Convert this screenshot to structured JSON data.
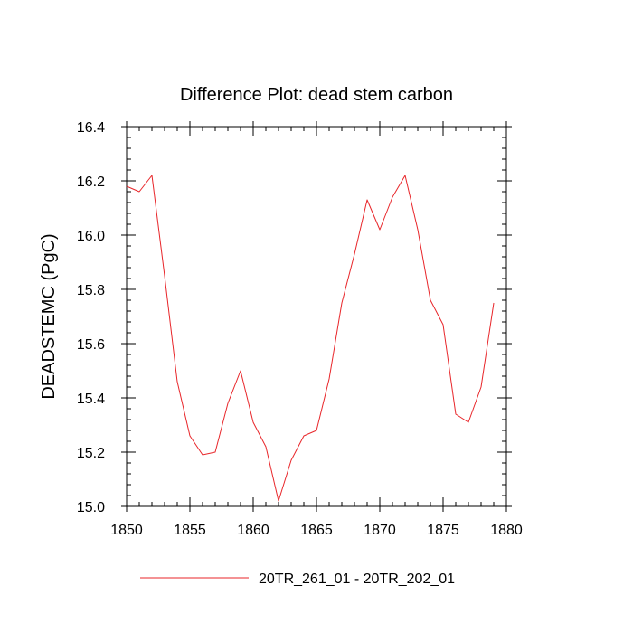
{
  "chart_data": {
    "type": "line",
    "title": "Difference Plot: dead stem carbon",
    "xlabel": "",
    "ylabel": "DEADSTEMC  (PgC)",
    "xlim": [
      1850,
      1880
    ],
    "ylim": [
      15.0,
      16.4
    ],
    "xticks": [
      1850,
      1855,
      1860,
      1865,
      1870,
      1875,
      1880
    ],
    "yticks": [
      15.0,
      15.2,
      15.4,
      15.6,
      15.8,
      16.0,
      16.2,
      16.4
    ],
    "ytick_labels": [
      "15.0",
      "15.2",
      "15.4",
      "15.6",
      "15.8",
      "16.0",
      "16.2",
      "16.4"
    ],
    "grid": false,
    "legend_position": "bottom",
    "series": [
      {
        "name": "20TR_261_01 - 20TR_202_01",
        "color": "#e8262a",
        "x": [
          1850,
          1851,
          1852,
          1853,
          1854,
          1855,
          1856,
          1857,
          1858,
          1859,
          1860,
          1861,
          1862,
          1863,
          1864,
          1865,
          1866,
          1867,
          1868,
          1869,
          1870,
          1871,
          1872,
          1873,
          1874,
          1875,
          1876,
          1877,
          1878,
          1879
        ],
        "y": [
          16.18,
          16.16,
          16.22,
          15.85,
          15.46,
          15.26,
          15.19,
          15.2,
          15.38,
          15.5,
          15.31,
          15.22,
          15.02,
          15.17,
          15.26,
          15.28,
          15.47,
          15.75,
          15.93,
          16.13,
          16.02,
          16.14,
          16.22,
          16.02,
          15.76,
          15.67,
          15.34,
          15.31,
          15.44,
          15.75
        ]
      }
    ]
  }
}
